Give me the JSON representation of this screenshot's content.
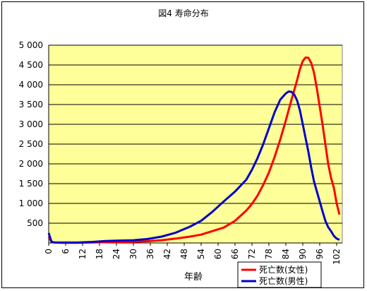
{
  "chart_data": {
    "type": "line",
    "title": "図4 寿命分布",
    "xlabel": "年齢",
    "ylabel": "",
    "xlim": [
      0,
      104
    ],
    "ylim": [
      0,
      5000
    ],
    "y_ticks": [
      "500",
      "1 000",
      "1 500",
      "2 000",
      "2 500",
      "3 000",
      "3 500",
      "4 000",
      "4 500",
      "5 000"
    ],
    "y_tick_values": [
      500,
      1000,
      1500,
      2000,
      2500,
      3000,
      3500,
      4000,
      4500,
      5000
    ],
    "x_ticks": [
      "0",
      "6",
      "12",
      "18",
      "24",
      "30",
      "36",
      "42",
      "48",
      "54",
      "60",
      "66",
      "72",
      "78",
      "84",
      "90",
      "96",
      "102"
    ],
    "x_tick_values": [
      0,
      6,
      12,
      18,
      24,
      30,
      36,
      42,
      48,
      54,
      60,
      66,
      72,
      78,
      84,
      90,
      96,
      102
    ],
    "grid": true,
    "legend_position": "bottom-right",
    "plot_background": "#ffff99",
    "series": [
      {
        "name": "死亡数(女性)",
        "color": "#ff0000",
        "x": [
          0,
          1,
          2,
          5,
          10,
          15,
          20,
          25,
          30,
          35,
          40,
          45,
          50,
          54,
          58,
          62,
          66,
          70,
          72,
          74,
          76,
          78,
          80,
          82,
          84,
          86,
          88,
          89,
          90,
          91,
          92,
          93,
          94,
          95,
          96,
          97,
          98,
          99,
          100,
          101,
          102,
          103
        ],
        "y": [
          150,
          30,
          10,
          5,
          5,
          10,
          20,
          25,
          30,
          45,
          70,
          110,
          160,
          210,
          300,
          390,
          560,
          820,
          990,
          1200,
          1470,
          1780,
          2170,
          2610,
          3100,
          3620,
          4120,
          4400,
          4600,
          4690,
          4680,
          4550,
          4300,
          3900,
          3450,
          3000,
          2500,
          2000,
          1650,
          1400,
          1000,
          720
        ]
      },
      {
        "name": "死亡数(男性)",
        "color": "#0000cc",
        "x": [
          0,
          1,
          2,
          5,
          10,
          15,
          20,
          25,
          30,
          35,
          40,
          45,
          50,
          54,
          58,
          62,
          66,
          70,
          72,
          74,
          76,
          78,
          80,
          82,
          84,
          85,
          86,
          87,
          88,
          89,
          90,
          91,
          92,
          93,
          94,
          95,
          96,
          97,
          98,
          99,
          100,
          101,
          102,
          103
        ],
        "y": [
          250,
          30,
          15,
          10,
          10,
          25,
          50,
          60,
          70,
          100,
          160,
          260,
          410,
          560,
          790,
          1050,
          1300,
          1600,
          1850,
          2150,
          2500,
          2900,
          3300,
          3620,
          3780,
          3830,
          3820,
          3750,
          3600,
          3350,
          3000,
          2650,
          2300,
          1900,
          1550,
          1300,
          1050,
          800,
          560,
          400,
          300,
          180,
          110,
          80
        ]
      }
    ]
  }
}
